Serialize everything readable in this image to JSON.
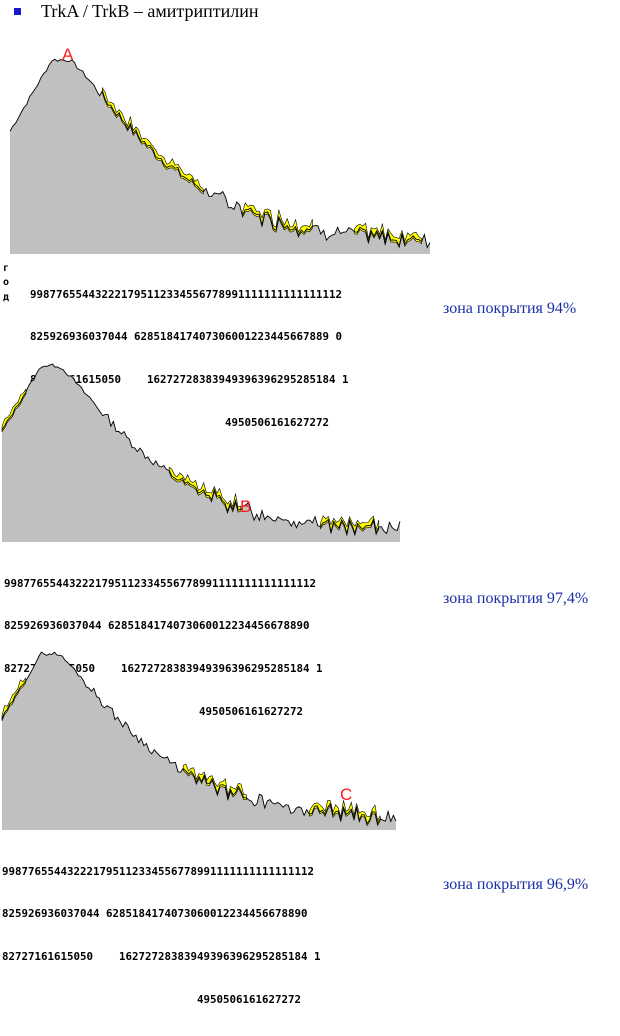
{
  "header": {
    "text": "TrkA / TrkB – амитриптилин",
    "bullet_color": "#1a1acc"
  },
  "axis_side_label": [
    "г",
    "о",
    "д"
  ],
  "colors": {
    "base_fill": "#c0c0c0",
    "overlay_fill": "#ffff00",
    "outline": "#000000",
    "marker": "#ff1a1a",
    "coverage_text": "#1a2fa6"
  },
  "chart_data": [
    {
      "type": "area",
      "marker_label": "A",
      "coverage_label": "зона покрытия 94%",
      "tick_rows": [
        "998776554432221795112334556778991111111111111112",
        "825926936037044 628518417407306001223445667889 0",
        "82727161615050    16272728383949396396295285184 1",
        "                              4950506161627272"
      ]
    },
    {
      "type": "area",
      "marker_label": "B",
      "coverage_label": "зона покрытия 97,4%",
      "tick_rows": [
        "998776554432221795112334556778991111111111111112",
        "825926936037044 6285184174073060012234456678890",
        "82727161615050    16272728383949396396295285184 1",
        "                              4950506161627272"
      ]
    },
    {
      "type": "area",
      "marker_label": "C",
      "coverage_label": "зона покрытия 96,9%",
      "tick_rows": [
        "998776554432221795112334556778991111111111111112",
        "825926936037044 6285184174073060012234456678890",
        "82727161615050    16272728383949396396295285184 1",
        "                              4950506161627272"
      ]
    }
  ]
}
